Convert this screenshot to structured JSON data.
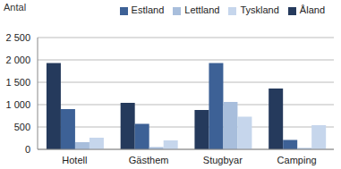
{
  "chart_data": {
    "type": "bar",
    "y_label": "Antal",
    "categories": [
      "Hotell",
      "Gästhem",
      "Stugbyar",
      "Camping"
    ],
    "series": [
      {
        "name": "Åland",
        "color": "#253a5c",
        "values": [
          1930,
          1040,
          880,
          1360
        ]
      },
      {
        "name": "Estland",
        "color": "#3d6196",
        "values": [
          900,
          570,
          1930,
          210
        ]
      },
      {
        "name": "Lettland",
        "color": "#a8bedc",
        "values": [
          160,
          50,
          1060,
          30
        ]
      },
      {
        "name": "Tyskland",
        "color": "#c6d6ec",
        "values": [
          260,
          200,
          730,
          540
        ]
      }
    ],
    "ylim": [
      0,
      2500
    ],
    "yticks": [
      0,
      500,
      {
        "value": 1000,
        "label": "1 000"
      },
      {
        "value": 1500,
        "label": "1 500"
      },
      {
        "value": 2000,
        "label": "2 000"
      },
      {
        "value": 2500,
        "label": "2 500"
      }
    ],
    "grid": true,
    "legend": "top-right"
  }
}
